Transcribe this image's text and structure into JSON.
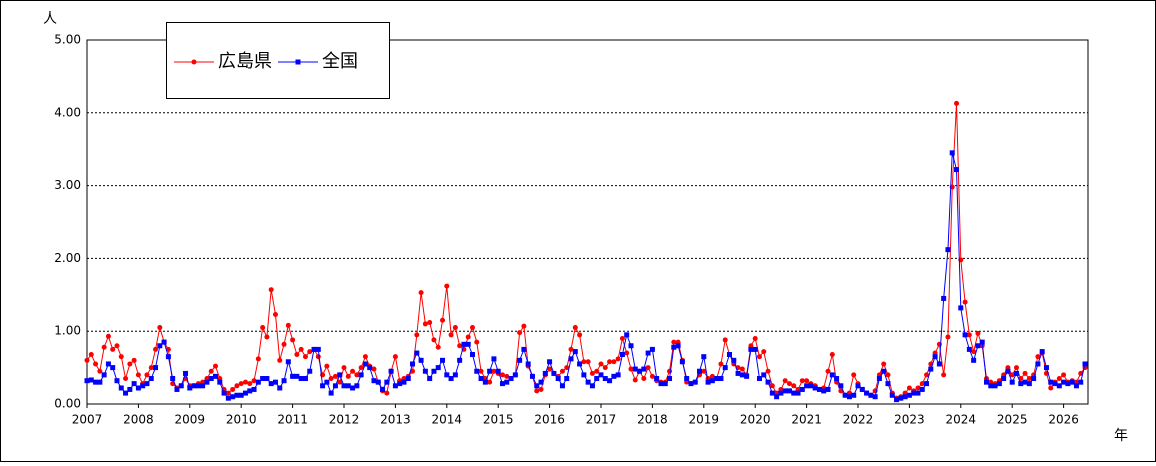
{
  "chart_data": {
    "type": "line",
    "ylabel": "人",
    "xlabel": "年",
    "categories": [
      "2007",
      null,
      null,
      null,
      null,
      null,
      null,
      null,
      null,
      null,
      null,
      null,
      "2008",
      null,
      null,
      null,
      null,
      null,
      null,
      null,
      null,
      null,
      null,
      null,
      "2009",
      null,
      null,
      null,
      null,
      null,
      null,
      null,
      null,
      null,
      null,
      null,
      "2010",
      null,
      null,
      null,
      null,
      null,
      null,
      null,
      null,
      null,
      null,
      null,
      "2011",
      null,
      null,
      null,
      null,
      null,
      null,
      null,
      null,
      null,
      null,
      null,
      "2012",
      null,
      null,
      null,
      null,
      null,
      null,
      null,
      null,
      null,
      null,
      null,
      "2013",
      null,
      null,
      null,
      null,
      null,
      null,
      null,
      null,
      null,
      null,
      null,
      "2014",
      null,
      null,
      null,
      null,
      null,
      null,
      null,
      null,
      null,
      null,
      null,
      "2015",
      null,
      null,
      null,
      null,
      null,
      null,
      null,
      null,
      null,
      null,
      null,
      "2016",
      null,
      null,
      null,
      null,
      null,
      null,
      null,
      null,
      null,
      null,
      null,
      "2017",
      null,
      null,
      null,
      null,
      null,
      null,
      null,
      null,
      null,
      null,
      null,
      "2018",
      null,
      null,
      null,
      null,
      null,
      null,
      null,
      null,
      null,
      null,
      null,
      "2019",
      null,
      null,
      null,
      null,
      null,
      null,
      null,
      null,
      null,
      null,
      null,
      "2020",
      null,
      null,
      null,
      null,
      null,
      null,
      null,
      null,
      null,
      null,
      null,
      "2021",
      null,
      null,
      null,
      null,
      null,
      null,
      null,
      null,
      null,
      null,
      null,
      "2022",
      null,
      null,
      null,
      null,
      null,
      null,
      null,
      null,
      null,
      null,
      null,
      "2023",
      null,
      null,
      null,
      null,
      null,
      null,
      null,
      null,
      null,
      null,
      null,
      "2024",
      null,
      null,
      null,
      null,
      null,
      null,
      null,
      null,
      null,
      null,
      null,
      "2025",
      null,
      null,
      null,
      null,
      null,
      null,
      null,
      null,
      null,
      null,
      null,
      "2026",
      null,
      null,
      null,
      null,
      null
    ],
    "series": [
      {
        "name": "広島県",
        "color": "#ff0000",
        "marker": "circle",
        "values": [
          0.6,
          0.68,
          0.55,
          0.45,
          0.78,
          0.93,
          0.75,
          0.8,
          0.65,
          0.35,
          0.55,
          0.6,
          0.4,
          0.28,
          0.4,
          0.5,
          0.75,
          1.05,
          0.85,
          0.75,
          0.28,
          0.22,
          0.25,
          0.35,
          0.25,
          0.25,
          0.28,
          0.3,
          0.35,
          0.45,
          0.52,
          0.35,
          0.2,
          0.15,
          0.2,
          0.25,
          0.28,
          0.3,
          0.28,
          0.32,
          0.62,
          1.05,
          0.92,
          1.57,
          1.23,
          0.6,
          0.82,
          1.08,
          0.88,
          0.68,
          0.75,
          0.65,
          0.72,
          0.75,
          0.65,
          0.4,
          0.52,
          0.35,
          0.38,
          0.3,
          0.5,
          0.38,
          0.45,
          0.4,
          0.5,
          0.65,
          0.52,
          0.48,
          0.3,
          0.18,
          0.15,
          0.45,
          0.65,
          0.32,
          0.35,
          0.38,
          0.45,
          0.95,
          1.53,
          1.1,
          1.12,
          0.88,
          0.78,
          1.15,
          1.62,
          0.95,
          1.05,
          0.8,
          0.75,
          0.92,
          1.05,
          0.85,
          0.45,
          0.35,
          0.3,
          0.45,
          0.42,
          0.4,
          0.38,
          0.35,
          0.4,
          0.98,
          1.07,
          0.52,
          0.38,
          0.18,
          0.2,
          0.4,
          0.48,
          0.42,
          0.38,
          0.45,
          0.5,
          0.75,
          1.05,
          0.95,
          0.58,
          0.58,
          0.42,
          0.45,
          0.55,
          0.5,
          0.58,
          0.58,
          0.62,
          0.9,
          0.7,
          0.48,
          0.33,
          0.45,
          0.35,
          0.5,
          0.38,
          0.32,
          0.3,
          0.3,
          0.45,
          0.85,
          0.85,
          0.6,
          0.3,
          0.28,
          0.3,
          0.4,
          0.45,
          0.35,
          0.38,
          0.35,
          0.55,
          0.88,
          0.68,
          0.55,
          0.5,
          0.48,
          0.4,
          0.8,
          0.9,
          0.65,
          0.72,
          0.45,
          0.25,
          0.15,
          0.2,
          0.32,
          0.28,
          0.25,
          0.2,
          0.32,
          0.32,
          0.28,
          0.25,
          0.2,
          0.22,
          0.45,
          0.68,
          0.3,
          0.18,
          0.12,
          0.15,
          0.4,
          0.28,
          0.2,
          0.15,
          0.12,
          0.18,
          0.4,
          0.55,
          0.4,
          0.15,
          0.08,
          0.1,
          0.15,
          0.22,
          0.18,
          0.22,
          0.28,
          0.4,
          0.55,
          0.7,
          0.82,
          0.4,
          0.92,
          2.98,
          4.13,
          1.98,
          1.4,
          0.95,
          0.72,
          0.97,
          0.8,
          0.35,
          0.3,
          0.28,
          0.32,
          0.4,
          0.5,
          0.4,
          0.5,
          0.35,
          0.42,
          0.35,
          0.4,
          0.65,
          0.7,
          0.42,
          0.22,
          0.3,
          0.35,
          0.4,
          0.3,
          0.32,
          0.3,
          0.42,
          0.5
        ]
      },
      {
        "name": "全国",
        "color": "#0000ff",
        "marker": "square",
        "values": [
          0.32,
          0.33,
          0.3,
          0.3,
          0.4,
          0.55,
          0.5,
          0.32,
          0.22,
          0.15,
          0.2,
          0.28,
          0.22,
          0.25,
          0.28,
          0.35,
          0.5,
          0.8,
          0.85,
          0.65,
          0.35,
          0.2,
          0.25,
          0.42,
          0.22,
          0.25,
          0.25,
          0.25,
          0.3,
          0.35,
          0.38,
          0.3,
          0.15,
          0.08,
          0.1,
          0.12,
          0.12,
          0.15,
          0.18,
          0.2,
          0.3,
          0.35,
          0.35,
          0.28,
          0.3,
          0.22,
          0.32,
          0.58,
          0.38,
          0.38,
          0.35,
          0.35,
          0.45,
          0.75,
          0.75,
          0.25,
          0.3,
          0.15,
          0.25,
          0.4,
          0.25,
          0.25,
          0.22,
          0.25,
          0.4,
          0.55,
          0.5,
          0.32,
          0.3,
          0.2,
          0.3,
          0.45,
          0.25,
          0.28,
          0.3,
          0.35,
          0.55,
          0.7,
          0.6,
          0.45,
          0.35,
          0.45,
          0.5,
          0.6,
          0.4,
          0.35,
          0.4,
          0.6,
          0.82,
          0.82,
          0.68,
          0.45,
          0.35,
          0.3,
          0.45,
          0.62,
          0.45,
          0.28,
          0.3,
          0.35,
          0.4,
          0.6,
          0.75,
          0.55,
          0.38,
          0.25,
          0.3,
          0.42,
          0.58,
          0.42,
          0.35,
          0.25,
          0.35,
          0.62,
          0.72,
          0.55,
          0.4,
          0.3,
          0.25,
          0.35,
          0.4,
          0.35,
          0.32,
          0.38,
          0.4,
          0.68,
          0.95,
          0.8,
          0.48,
          0.45,
          0.48,
          0.7,
          0.75,
          0.35,
          0.28,
          0.28,
          0.35,
          0.78,
          0.8,
          0.58,
          0.35,
          0.28,
          0.3,
          0.45,
          0.65,
          0.3,
          0.32,
          0.35,
          0.35,
          0.5,
          0.68,
          0.6,
          0.42,
          0.4,
          0.38,
          0.75,
          0.75,
          0.35,
          0.4,
          0.3,
          0.15,
          0.1,
          0.15,
          0.18,
          0.18,
          0.15,
          0.15,
          0.2,
          0.25,
          0.25,
          0.22,
          0.2,
          0.18,
          0.2,
          0.4,
          0.35,
          0.25,
          0.12,
          0.1,
          0.12,
          0.25,
          0.2,
          0.15,
          0.12,
          0.1,
          0.35,
          0.45,
          0.28,
          0.12,
          0.06,
          0.08,
          0.1,
          0.12,
          0.15,
          0.15,
          0.2,
          0.28,
          0.48,
          0.65,
          0.55,
          1.45,
          2.12,
          3.45,
          3.22,
          1.32,
          0.95,
          0.75,
          0.6,
          0.8,
          0.85,
          0.3,
          0.25,
          0.25,
          0.28,
          0.35,
          0.45,
          0.3,
          0.42,
          0.28,
          0.3,
          0.28,
          0.35,
          0.55,
          0.72,
          0.5,
          0.3,
          0.28,
          0.25,
          0.3,
          0.28,
          0.3,
          0.25,
          0.3,
          0.55
        ]
      }
    ],
    "ylim": [
      0,
      5
    ],
    "yticks": [
      {
        "value": 0,
        "label": "0.00"
      },
      {
        "value": 1,
        "label": "1.00"
      },
      {
        "value": 2,
        "label": "2.00"
      },
      {
        "value": 3,
        "label": "3.00"
      },
      {
        "value": 4,
        "label": "4.00"
      },
      {
        "value": 5,
        "label": "5.00"
      }
    ],
    "grid": true,
    "legend": "top-left"
  }
}
